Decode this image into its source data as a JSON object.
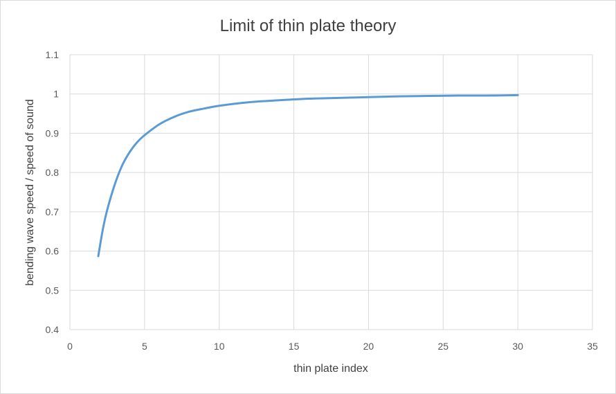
{
  "chart_data": {
    "type": "line",
    "title": "Limit of thin plate theory",
    "xlabel": "thin plate index",
    "ylabel": "bending wave speed / speed of sound",
    "xlim": [
      0,
      35
    ],
    "ylim": [
      0.4,
      1.1
    ],
    "x_ticks": [
      "0",
      "5",
      "10",
      "15",
      "20",
      "25",
      "30",
      "35"
    ],
    "y_ticks": [
      "0.4",
      "0.5",
      "0.6",
      "0.7",
      "0.8",
      "0.9",
      "1",
      "1.1"
    ],
    "grid": true,
    "legend": "none",
    "series": [
      {
        "color": "#5b9bd5",
        "x": [
          1.9,
          2.2,
          2.5,
          3,
          3.5,
          4,
          4.5,
          5,
          6,
          7,
          8,
          9,
          10,
          12,
          14,
          16,
          18,
          20,
          22,
          24,
          26,
          28,
          30
        ],
        "y": [
          0.587,
          0.654,
          0.705,
          0.769,
          0.818,
          0.852,
          0.877,
          0.895,
          0.923,
          0.942,
          0.955,
          0.963,
          0.97,
          0.979,
          0.984,
          0.988,
          0.99,
          0.992,
          0.994,
          0.995,
          0.996,
          0.996,
          0.997
        ]
      }
    ]
  }
}
